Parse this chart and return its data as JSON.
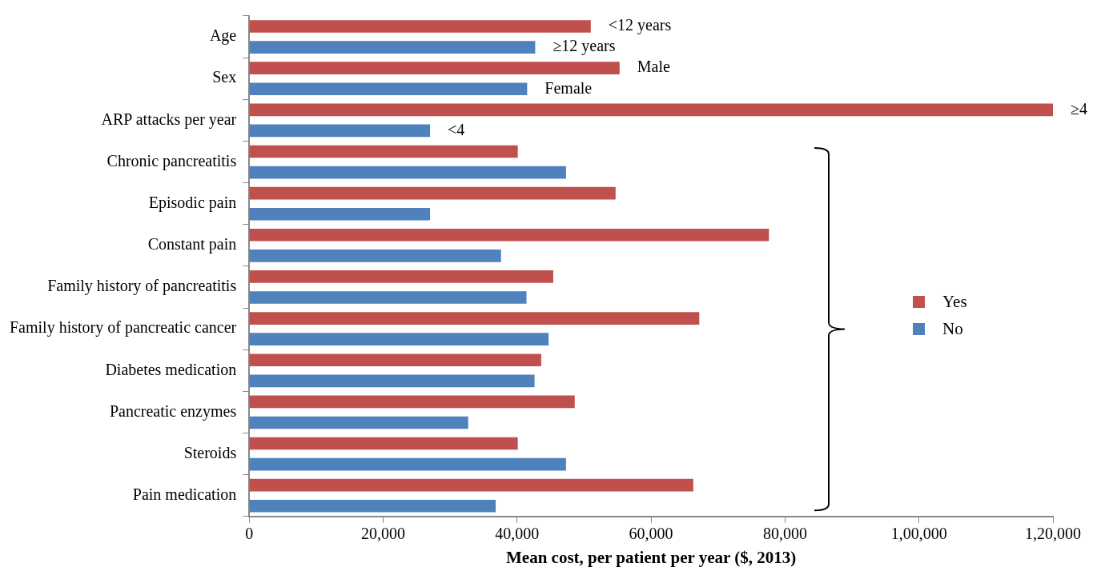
{
  "chart_data": {
    "type": "bar",
    "orientation": "horizontal",
    "xlabel": "Mean cost, per patient per year ($, 2013)",
    "categories": [
      "Age",
      "Sex",
      "ARP attacks per year",
      "Chronic pancreatitis",
      "Episodic pain",
      "Constant pain",
      "Family history of pancreatitis",
      "Family history of pancreatic cancer",
      "Diabetes medication",
      "Pancreatic enzymes",
      "Steroids",
      "Pain medication"
    ],
    "series": [
      {
        "name": "Yes",
        "color": "#c0504d",
        "values": [
          51000,
          55300,
          120000,
          40100,
          54700,
          77600,
          45400,
          67200,
          43600,
          48600,
          40100,
          66300
        ]
      },
      {
        "name": "No",
        "color": "#4f81bd",
        "values": [
          42700,
          41500,
          27000,
          47300,
          27000,
          37600,
          41400,
          44700,
          42600,
          32700,
          47300,
          36800
        ]
      }
    ],
    "xlim": [
      0,
      120000
    ],
    "xticks": [
      0,
      {
        "value": 20000,
        "label": "20,000"
      },
      {
        "value": 40000,
        "label": "40,000"
      },
      {
        "value": 60000,
        "label": "60,000"
      },
      {
        "value": 80000,
        "label": "80,000"
      },
      {
        "value": 100000,
        "label": "1,00,000"
      },
      {
        "value": 120000,
        "label": "1,20,000"
      }
    ],
    "annotations": [
      {
        "text": "<12 years",
        "x": 51000,
        "y": "Age"
      },
      {
        "text": "≥12 years",
        "x": 42700,
        "y": "Age"
      },
      {
        "text": "Male",
        "x": 55300,
        "y": "Sex"
      },
      {
        "text": "Female",
        "x": 41500,
        "y": "Sex"
      },
      {
        "text": "≥4",
        "x": 120000,
        "y": "ARP attacks per year"
      },
      {
        "text": "<4",
        "x": 27000,
        "y": "ARP attacks per year"
      }
    ],
    "grid": false,
    "legend": "right"
  }
}
